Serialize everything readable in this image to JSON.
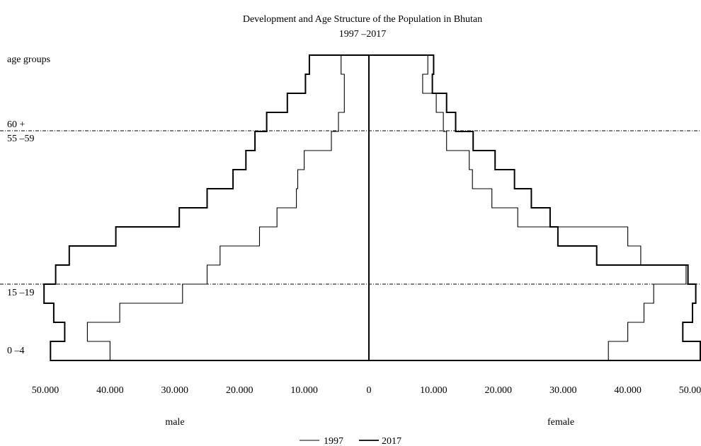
{
  "chart_data": {
    "type": "bar",
    "subtype": "population-pyramid-step",
    "title": "Development and Age Structure of the Population in Bhutan",
    "subtitle": "1997 –2017",
    "ylabel": "age groups",
    "y_tick_labels": [
      "0 –4",
      "15 –19",
      "55 –59",
      "60 +"
    ],
    "reference_lines": [
      "15 –19",
      "55 –59"
    ],
    "male_label": "male",
    "female_label": "female",
    "x_tick_labels": [
      "50.000",
      "40.000",
      "30.000",
      "20.000",
      "10.000",
      "0",
      "10.000",
      "20.000",
      "30.000",
      "40.000",
      "50.000"
    ],
    "xlim": [
      -50000,
      50000
    ],
    "num_age_bands": 16,
    "grid": false,
    "legend_placement": "bottom-center",
    "series": [
      {
        "name": "1997",
        "male": [
          40000,
          43500,
          38500,
          28800,
          25000,
          23000,
          16900,
          14200,
          11200,
          11000,
          10000,
          5800,
          4700,
          3800,
          3800,
          4300
        ],
        "female": [
          37000,
          40000,
          42500,
          44000,
          49000,
          42000,
          40000,
          23000,
          19000,
          16000,
          15500,
          12000,
          11500,
          10400,
          8300,
          9100
        ]
      },
      {
        "name": "2017",
        "male": [
          49200,
          47000,
          48700,
          50200,
          48400,
          46300,
          39100,
          29300,
          25000,
          21000,
          19000,
          17600,
          15800,
          12600,
          9800,
          9200
        ],
        "female": [
          51200,
          48500,
          50000,
          50500,
          49300,
          35200,
          29200,
          28000,
          25100,
          22500,
          19500,
          16100,
          13400,
          12000,
          9800,
          10000
        ]
      }
    ]
  }
}
